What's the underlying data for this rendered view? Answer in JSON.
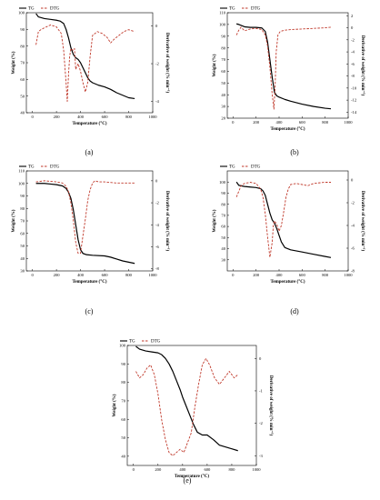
{
  "chart_data": [
    {
      "type": "line",
      "panel_caption": "(a)",
      "xlabel": "Temperature (°C)",
      "ylabel_left": "Weight (%)",
      "ylabel_right": "Derivative of weight (% min⁻¹)",
      "xlim": [
        -50,
        1000
      ],
      "ylim_left": [
        40,
        100
      ],
      "ylim_right": [
        -4.6,
        0.7
      ],
      "x_ticks": [
        0,
        200,
        400,
        600,
        800,
        1000
      ],
      "y_left_ticks": [
        40,
        50,
        60,
        70,
        80,
        90,
        100
      ],
      "y_right_ticks": [
        -4,
        -2,
        0
      ],
      "legend": [
        "TG",
        "DTG"
      ],
      "series": [
        {
          "name": "TG",
          "axis": "left",
          "color": "#000000",
          "style": "solid",
          "x": [
            30,
            50,
            100,
            150,
            200,
            230,
            260,
            280,
            300,
            320,
            340,
            360,
            380,
            400,
            420,
            440,
            460,
            480,
            500,
            550,
            600,
            650,
            700,
            750,
            800,
            850
          ],
          "y": [
            99.5,
            97.5,
            96.5,
            96,
            95.5,
            95,
            93.5,
            90,
            85,
            79,
            75,
            73,
            72,
            70,
            67,
            64,
            61,
            59,
            58,
            56.5,
            55.5,
            54,
            52,
            50.5,
            49,
            48.5
          ]
        },
        {
          "name": "DTG",
          "axis": "right",
          "color": "#c0392b",
          "style": "dashed",
          "x": [
            30,
            50,
            70,
            100,
            150,
            200,
            240,
            260,
            280,
            290,
            300,
            310,
            320,
            340,
            350,
            360,
            380,
            400,
            420,
            440,
            460,
            480,
            500,
            540,
            580,
            620,
            650,
            680,
            720,
            760,
            800,
            850
          ],
          "y": [
            -1.0,
            -0.3,
            -0.2,
            -0.1,
            0.05,
            -0.05,
            -0.4,
            -1.3,
            -3.0,
            -4.0,
            -2.6,
            -1.6,
            -1.2,
            -1.3,
            -1.2,
            -2.3,
            -2.0,
            -2.4,
            -3.0,
            -3.5,
            -3.0,
            -1.6,
            -0.5,
            -0.3,
            -0.4,
            -0.6,
            -0.9,
            -0.7,
            -0.5,
            -0.3,
            -0.2,
            -0.3
          ]
        }
      ]
    },
    {
      "type": "line",
      "panel_caption": "(b)",
      "xlabel": "Temperature (°C)",
      "ylabel_left": "Weight (%)",
      "ylabel_right": "Derivative of weight (% min⁻¹)",
      "xlim": [
        -50,
        1000
      ],
      "ylim_left": [
        20,
        110
      ],
      "ylim_right": [
        -15,
        2.5
      ],
      "x_ticks": [
        0,
        200,
        400,
        600,
        800,
        1000
      ],
      "y_left_ticks": [
        20,
        30,
        40,
        50,
        60,
        70,
        80,
        90,
        100,
        110
      ],
      "y_right_ticks": [
        -14,
        -12,
        -10,
        -8,
        -6,
        -4,
        -2,
        0,
        2
      ],
      "legend": [
        "TG",
        "DTG"
      ],
      "series": [
        {
          "name": "TG",
          "axis": "left",
          "color": "#000000",
          "style": "solid",
          "x": [
            30,
            50,
            100,
            150,
            200,
            250,
            280,
            300,
            320,
            340,
            360,
            380,
            400,
            450,
            500,
            600,
            700,
            800,
            850
          ],
          "y": [
            100.5,
            100,
            98,
            97.5,
            97.5,
            97,
            94,
            85,
            70,
            55,
            42,
            39,
            38,
            36,
            34.5,
            32,
            30,
            28.5,
            28
          ]
        },
        {
          "name": "DTG",
          "axis": "right",
          "color": "#c0392b",
          "style": "dashed",
          "x": [
            30,
            50,
            70,
            100,
            150,
            200,
            250,
            280,
            300,
            320,
            340,
            355,
            365,
            375,
            390,
            410,
            450,
            500,
            600,
            700,
            800,
            850
          ],
          "y": [
            -1.2,
            -0.4,
            0.1,
            -0.5,
            -0.2,
            -0.1,
            -0.3,
            -1.2,
            -3.0,
            -6.5,
            -11.0,
            -13.5,
            -10.0,
            -4.0,
            -1.2,
            -0.6,
            -0.4,
            -0.3,
            -0.2,
            -0.1,
            0.0,
            0.1
          ]
        }
      ]
    },
    {
      "type": "line",
      "panel_caption": "(c)",
      "xlabel": "Temperature (°C)",
      "ylabel_left": "Weight (%)",
      "ylabel_right": "Derivative of weight (% min⁻¹)",
      "xlim": [
        -50,
        1000
      ],
      "ylim_left": [
        30,
        110
      ],
      "ylim_right": [
        -8.2,
        0.9
      ],
      "x_ticks": [
        0,
        200,
        400,
        600,
        800,
        1000
      ],
      "y_left_ticks": [
        30,
        40,
        50,
        60,
        70,
        80,
        90,
        100,
        110
      ],
      "y_right_ticks": [
        -8,
        -6,
        -4,
        -2,
        0
      ],
      "legend": [
        "TG",
        "DTG"
      ],
      "series": [
        {
          "name": "TG",
          "axis": "left",
          "color": "#000000",
          "style": "solid",
          "x": [
            30,
            100,
            150,
            200,
            250,
            280,
            300,
            320,
            340,
            360,
            380,
            400,
            420,
            450,
            500,
            600,
            650,
            700,
            750,
            800,
            850
          ],
          "y": [
            100,
            100,
            99.5,
            99,
            98,
            96,
            93,
            88,
            79,
            67,
            55,
            47,
            44,
            43,
            42.5,
            42,
            41,
            39.5,
            38,
            37,
            36
          ]
        },
        {
          "name": "DTG",
          "axis": "right",
          "color": "#c0392b",
          "style": "dashed",
          "x": [
            30,
            100,
            200,
            250,
            280,
            300,
            320,
            340,
            360,
            380,
            400,
            420,
            440,
            460,
            480,
            500,
            520,
            550,
            600,
            700,
            800,
            850
          ],
          "y": [
            -0.1,
            0.0,
            -0.1,
            -0.2,
            -0.5,
            -1.0,
            -2.0,
            -3.6,
            -5.6,
            -6.6,
            -6.6,
            -5.0,
            -3.5,
            -1.8,
            -0.8,
            -0.2,
            0.0,
            -0.1,
            -0.1,
            -0.2,
            -0.2,
            -0.2
          ]
        }
      ]
    },
    {
      "type": "line",
      "panel_caption": "(d)",
      "xlabel": "Temperature (°C)",
      "ylabel_left": "Weight (%)",
      "ylabel_right": "Derivative of weight (% min⁻¹)",
      "xlim": [
        -50,
        1000
      ],
      "ylim_left": [
        20,
        110
      ],
      "ylim_right": [
        -8,
        0.8
      ],
      "x_ticks": [
        0,
        200,
        400,
        600,
        800,
        1000
      ],
      "y_left_ticks": [
        30,
        40,
        50,
        60,
        70,
        80,
        90,
        100
      ],
      "y_right_ticks": [
        -8,
        -6,
        -4,
        -2,
        0
      ],
      "legend": [
        "TG",
        "DTG"
      ],
      "series": [
        {
          "name": "TG",
          "axis": "left",
          "color": "#000000",
          "style": "solid",
          "x": [
            30,
            50,
            100,
            150,
            200,
            240,
            260,
            280,
            300,
            320,
            340,
            360,
            380,
            400,
            420,
            450,
            500,
            600,
            700,
            800,
            850
          ],
          "y": [
            100,
            97,
            96,
            95.5,
            95,
            94,
            92,
            88,
            80,
            72,
            66,
            63,
            58,
            52,
            46,
            41,
            39,
            37,
            35,
            33,
            32
          ]
        },
        {
          "name": "DTG",
          "axis": "right",
          "color": "#c0392b",
          "style": "dashed",
          "x": [
            30,
            50,
            70,
            100,
            150,
            200,
            240,
            260,
            280,
            300,
            320,
            340,
            350,
            360,
            380,
            400,
            420,
            440,
            460,
            480,
            500,
            550,
            600,
            650,
            700,
            800,
            850
          ],
          "y": [
            -1.5,
            -1.0,
            -0.5,
            -0.3,
            -0.2,
            -0.3,
            -0.8,
            -1.5,
            -3.0,
            -5.0,
            -6.8,
            -5.5,
            -4.0,
            -3.6,
            -3.9,
            -4.5,
            -4.0,
            -2.8,
            -1.5,
            -0.8,
            -0.4,
            -0.3,
            -0.4,
            -0.5,
            -0.3,
            -0.2,
            -0.2
          ]
        }
      ]
    },
    {
      "type": "line",
      "panel_caption": "(e)",
      "xlabel": "Temperature (°C)",
      "ylabel_left": "Weight (%)",
      "ylabel_right": "Derivative of weight (% min⁻¹)",
      "xlim": [
        -50,
        1000
      ],
      "ylim_left": [
        35,
        100
      ],
      "ylim_right": [
        -3.3,
        0.4
      ],
      "x_ticks": [
        0,
        200,
        400,
        600,
        800,
        1000
      ],
      "y_left_ticks": [
        40,
        50,
        60,
        70,
        80,
        90,
        100
      ],
      "y_right_ticks": [
        -3,
        -2,
        -1,
        0
      ],
      "legend": [
        "TG",
        "DTG"
      ],
      "series": [
        {
          "name": "TG",
          "axis": "left",
          "color": "#000000",
          "style": "solid",
          "x": [
            20,
            50,
            100,
            150,
            200,
            230,
            260,
            290,
            320,
            350,
            380,
            400,
            430,
            460,
            490,
            520,
            560,
            600,
            650,
            700,
            750,
            800,
            850
          ],
          "y": [
            99.5,
            98,
            97,
            96.5,
            96,
            95,
            93,
            90,
            86,
            81,
            76,
            72,
            67,
            62,
            57,
            53,
            51.5,
            51.5,
            49,
            46,
            45,
            44,
            43
          ]
        },
        {
          "name": "DTG",
          "axis": "right",
          "color": "#c0392b",
          "style": "dashed",
          "x": [
            20,
            50,
            80,
            110,
            140,
            170,
            200,
            230,
            260,
            290,
            320,
            350,
            380,
            410,
            440,
            470,
            500,
            530,
            560,
            590,
            620,
            660,
            700,
            740,
            780,
            820,
            850
          ],
          "y": [
            -0.4,
            -0.6,
            -0.5,
            -0.3,
            -0.2,
            -0.5,
            -1.1,
            -1.9,
            -2.5,
            -2.9,
            -3.0,
            -2.9,
            -2.8,
            -2.9,
            -2.6,
            -2.3,
            -1.5,
            -0.8,
            -0.2,
            0.0,
            -0.2,
            -0.6,
            -0.8,
            -0.6,
            -0.4,
            -0.6,
            -0.5
          ]
        }
      ]
    }
  ]
}
